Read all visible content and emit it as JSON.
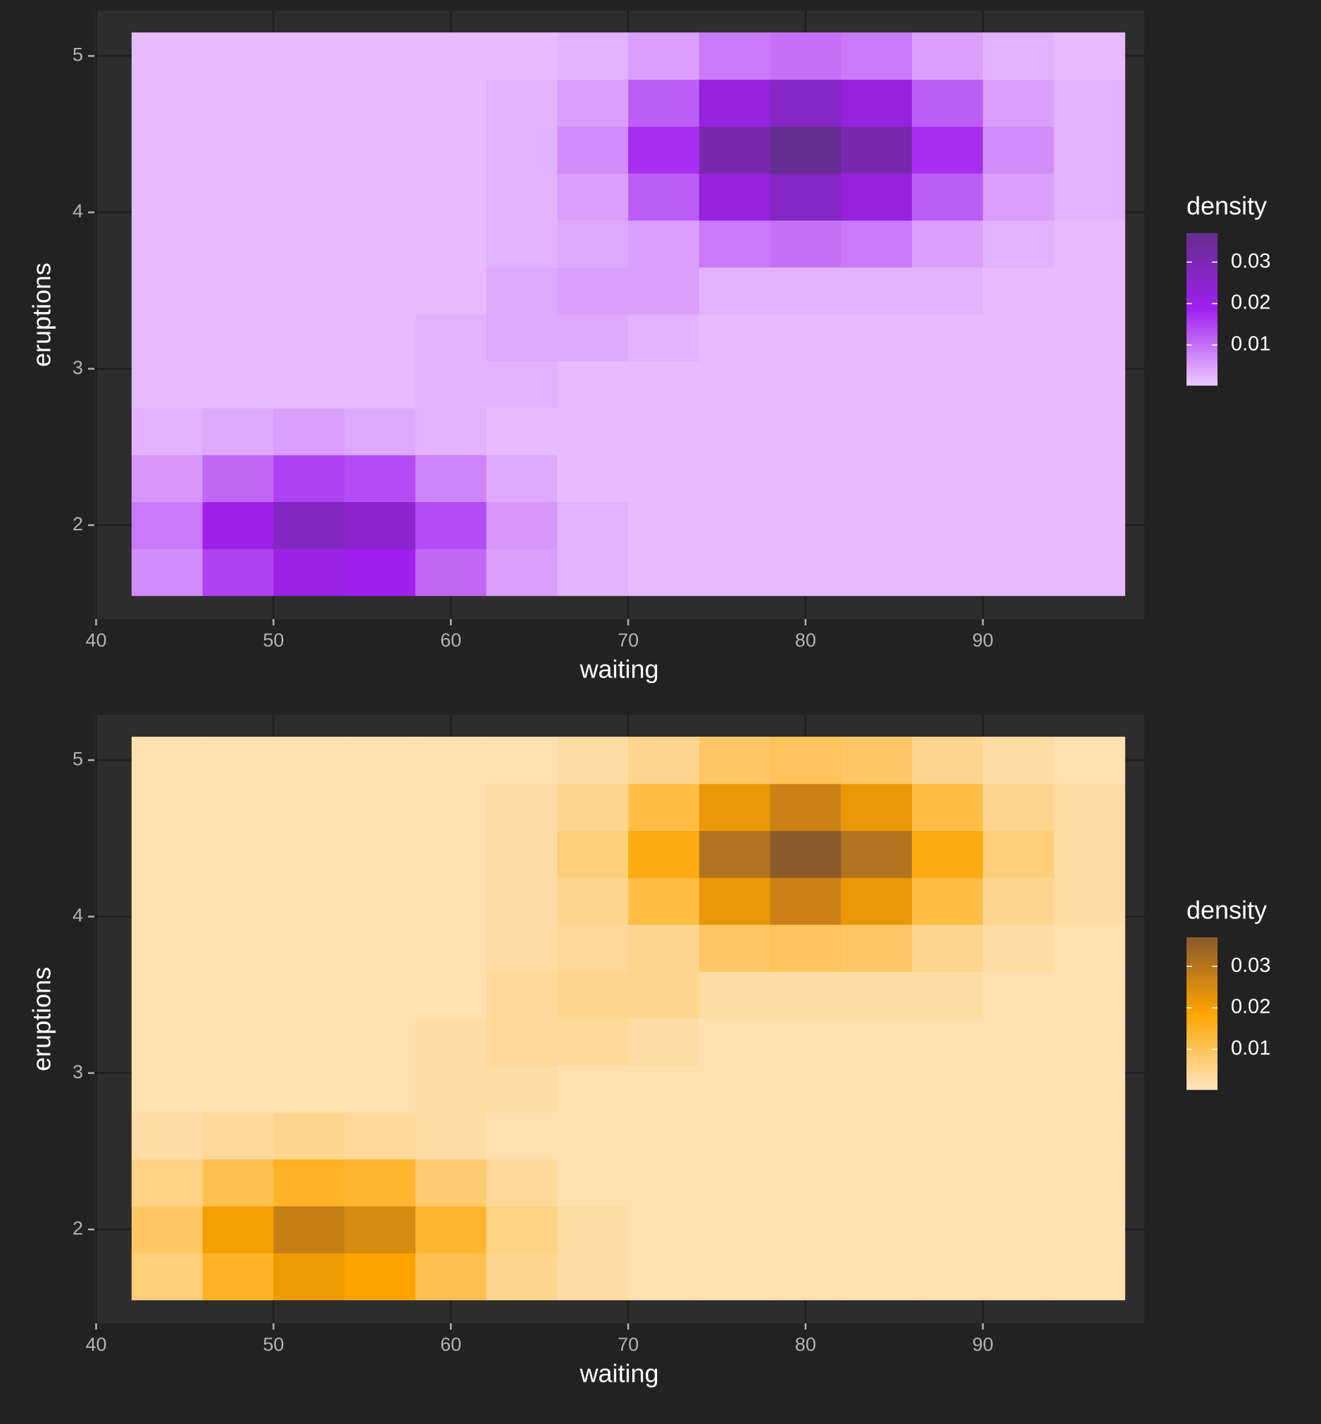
{
  "chart_data": [
    {
      "type": "heatmap",
      "xlabel": "waiting",
      "ylabel": "eruptions",
      "legend_title": "density",
      "colors": [
        "#eecbff",
        "#a020f0",
        "#662d91"
      ],
      "fill_limits": [
        0.0003,
        0.037
      ],
      "legend_ticks": [
        0.01,
        0.02,
        0.03
      ],
      "xlim": [
        39.9,
        99.1
      ],
      "ylim": [
        1.4,
        5.29
      ],
      "xticks": [
        40,
        50,
        60,
        70,
        80,
        90
      ],
      "yticks": [
        2,
        3,
        4,
        5
      ],
      "grid": true,
      "x": [
        44,
        48,
        52,
        56,
        60,
        64,
        68,
        72,
        76,
        80,
        84,
        88,
        92,
        96
      ],
      "y": [
        1.7,
        2.0,
        2.3,
        2.6,
        2.9,
        3.2,
        3.5,
        3.8,
        4.1,
        4.4,
        4.7,
        5.0
      ],
      "values": [
        [
          0.007,
          0.015,
          0.021,
          0.019,
          0.011,
          0.005,
          0.003,
          0.002,
          0.002,
          0.002,
          0.002,
          0.002,
          0.002,
          0.002
        ],
        [
          0.009,
          0.02,
          0.028,
          0.025,
          0.014,
          0.006,
          0.003,
          0.002,
          0.002,
          0.002,
          0.002,
          0.002,
          0.002,
          0.002
        ],
        [
          0.006,
          0.011,
          0.015,
          0.014,
          0.008,
          0.004,
          0.002,
          0.002,
          0.002,
          0.002,
          0.002,
          0.002,
          0.002,
          0.002
        ],
        [
          0.003,
          0.004,
          0.005,
          0.004,
          0.003,
          0.002,
          0.002,
          0.002,
          0.002,
          0.002,
          0.002,
          0.002,
          0.002,
          0.002
        ],
        [
          0.002,
          0.002,
          0.002,
          0.002,
          0.003,
          0.003,
          0.002,
          0.002,
          0.002,
          0.002,
          0.002,
          0.002,
          0.002,
          0.002
        ],
        [
          0.002,
          0.002,
          0.002,
          0.002,
          0.003,
          0.004,
          0.004,
          0.003,
          0.002,
          0.002,
          0.002,
          0.002,
          0.002,
          0.002
        ],
        [
          0.002,
          0.002,
          0.002,
          0.002,
          0.002,
          0.004,
          0.005,
          0.005,
          0.003,
          0.003,
          0.003,
          0.003,
          0.002,
          0.002
        ],
        [
          0.002,
          0.002,
          0.002,
          0.002,
          0.002,
          0.003,
          0.004,
          0.005,
          0.009,
          0.01,
          0.009,
          0.005,
          0.003,
          0.002
        ],
        [
          0.002,
          0.002,
          0.002,
          0.002,
          0.002,
          0.003,
          0.005,
          0.012,
          0.022,
          0.027,
          0.022,
          0.012,
          0.005,
          0.003
        ],
        [
          0.002,
          0.002,
          0.002,
          0.002,
          0.002,
          0.003,
          0.007,
          0.017,
          0.031,
          0.037,
          0.031,
          0.017,
          0.007,
          0.003
        ],
        [
          0.002,
          0.002,
          0.002,
          0.002,
          0.002,
          0.003,
          0.005,
          0.012,
          0.022,
          0.027,
          0.022,
          0.012,
          0.005,
          0.003
        ],
        [
          0.002,
          0.002,
          0.002,
          0.002,
          0.002,
          0.002,
          0.003,
          0.005,
          0.009,
          0.01,
          0.009,
          0.005,
          0.003,
          0.002
        ]
      ]
    },
    {
      "type": "heatmap",
      "xlabel": "waiting",
      "ylabel": "eruptions",
      "legend_title": "density",
      "colors": [
        "#ffe6c0",
        "#ffa500",
        "#8b5a2b"
      ],
      "fill_limits": [
        0.0003,
        0.037
      ],
      "legend_ticks": [
        0.01,
        0.02,
        0.03
      ],
      "xlim": [
        39.9,
        99.1
      ],
      "ylim": [
        1.4,
        5.29
      ],
      "xticks": [
        40,
        50,
        60,
        70,
        80,
        90
      ],
      "yticks": [
        2,
        3,
        4,
        5
      ],
      "grid": true,
      "x": [
        44,
        48,
        52,
        56,
        60,
        64,
        68,
        72,
        76,
        80,
        84,
        88,
        92,
        96
      ],
      "y": [
        1.7,
        2.0,
        2.3,
        2.6,
        2.9,
        3.2,
        3.5,
        3.8,
        4.1,
        4.4,
        4.7,
        5.0
      ],
      "values": [
        [
          0.007,
          0.015,
          0.021,
          0.019,
          0.011,
          0.005,
          0.003,
          0.002,
          0.002,
          0.002,
          0.002,
          0.002,
          0.002,
          0.002
        ],
        [
          0.009,
          0.02,
          0.028,
          0.025,
          0.014,
          0.006,
          0.003,
          0.002,
          0.002,
          0.002,
          0.002,
          0.002,
          0.002,
          0.002
        ],
        [
          0.006,
          0.011,
          0.015,
          0.014,
          0.008,
          0.004,
          0.002,
          0.002,
          0.002,
          0.002,
          0.002,
          0.002,
          0.002,
          0.002
        ],
        [
          0.003,
          0.004,
          0.005,
          0.004,
          0.003,
          0.002,
          0.002,
          0.002,
          0.002,
          0.002,
          0.002,
          0.002,
          0.002,
          0.002
        ],
        [
          0.002,
          0.002,
          0.002,
          0.002,
          0.003,
          0.003,
          0.002,
          0.002,
          0.002,
          0.002,
          0.002,
          0.002,
          0.002,
          0.002
        ],
        [
          0.002,
          0.002,
          0.002,
          0.002,
          0.003,
          0.004,
          0.004,
          0.003,
          0.002,
          0.002,
          0.002,
          0.002,
          0.002,
          0.002
        ],
        [
          0.002,
          0.002,
          0.002,
          0.002,
          0.002,
          0.004,
          0.005,
          0.005,
          0.003,
          0.003,
          0.003,
          0.003,
          0.002,
          0.002
        ],
        [
          0.002,
          0.002,
          0.002,
          0.002,
          0.002,
          0.003,
          0.004,
          0.005,
          0.009,
          0.01,
          0.009,
          0.005,
          0.003,
          0.002
        ],
        [
          0.002,
          0.002,
          0.002,
          0.002,
          0.002,
          0.003,
          0.005,
          0.012,
          0.022,
          0.027,
          0.022,
          0.012,
          0.005,
          0.003
        ],
        [
          0.002,
          0.002,
          0.002,
          0.002,
          0.002,
          0.003,
          0.007,
          0.017,
          0.031,
          0.037,
          0.031,
          0.017,
          0.007,
          0.003
        ],
        [
          0.002,
          0.002,
          0.002,
          0.002,
          0.002,
          0.003,
          0.005,
          0.012,
          0.022,
          0.027,
          0.022,
          0.012,
          0.005,
          0.003
        ],
        [
          0.002,
          0.002,
          0.002,
          0.002,
          0.002,
          0.002,
          0.003,
          0.005,
          0.009,
          0.01,
          0.009,
          0.005,
          0.003,
          0.002
        ]
      ]
    }
  ]
}
